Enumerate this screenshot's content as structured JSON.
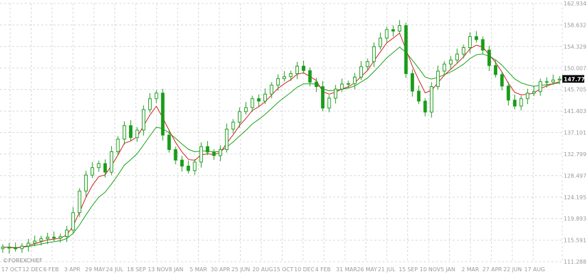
{
  "chart_data": {
    "type": "candlestick",
    "title": "",
    "xlabel": "",
    "ylabel": "",
    "ylim": [
      111.288,
      162.934
    ],
    "grid": true,
    "y_ticks": [
      "162.934",
      "158.632",
      "154.329",
      "150.007",
      "145.705",
      "141.403",
      "137.101",
      "132.799",
      "128.497",
      "124.195",
      "119.893",
      "115.591",
      "111.288"
    ],
    "x_ticks": [
      "17 OCT",
      "12 DEC",
      "6 FEB",
      "3 APR",
      "29 MAY",
      "24 JUL",
      "18 SEP",
      "13 NOV",
      "8 JAN",
      "5 MAR",
      "30 APR",
      "25 JUN",
      "20 AUG",
      "15 OCT",
      "10 DEC",
      "4 FEB",
      "31 MAR",
      "26 MAY",
      "21 JUL",
      "15 SEP",
      "10 NOV",
      "5 JAN",
      "2 MAR",
      "27 APR",
      "22 JUN",
      "17 AUG"
    ],
    "current_price": "147.775",
    "watermark": "©FOREXCHIEF",
    "series": [
      {
        "name": "",
        "kind": "close",
        "color": "#1a9c1a",
        "values": [
          114.2,
          114.0,
          113.9,
          114.4,
          115.0,
          115.4,
          115.9,
          116.2,
          116.0,
          116.3,
          117.6,
          121.1,
          125.4,
          128.6,
          130.1,
          130.9,
          129.2,
          133.3,
          135.8,
          138.5,
          136.1,
          137.6,
          141.7,
          143.9,
          145.0,
          136.6,
          133.7,
          131.6,
          130.4,
          129.5,
          131.2,
          134.3,
          133.2,
          132.5,
          133.7,
          137.8,
          139.2,
          141.3,
          142.1,
          143.9,
          143.4,
          144.8,
          146.6,
          147.9,
          148.3,
          148.9,
          150.4,
          149.5,
          147.2,
          146.3,
          142.0,
          144.0,
          145.8,
          146.8,
          146.9,
          148.2,
          150.3,
          151.3,
          154.3,
          156.0,
          157.7,
          157.4,
          158.5,
          148.9,
          145.4,
          143.4,
          141.2,
          146.3,
          149.4,
          150.8,
          151.6,
          152.8,
          154.1,
          156.3,
          155.7,
          153.6,
          150.5,
          148.7,
          146.4,
          143.6,
          142.4,
          143.9,
          145.0,
          145.3,
          147.3,
          147.2,
          147.6,
          147.8
        ]
      },
      {
        "name": "",
        "kind": "fast-ma",
        "color": "#d21a1a"
      },
      {
        "name": "",
        "kind": "slow-ma",
        "color": "#14a014"
      }
    ]
  }
}
